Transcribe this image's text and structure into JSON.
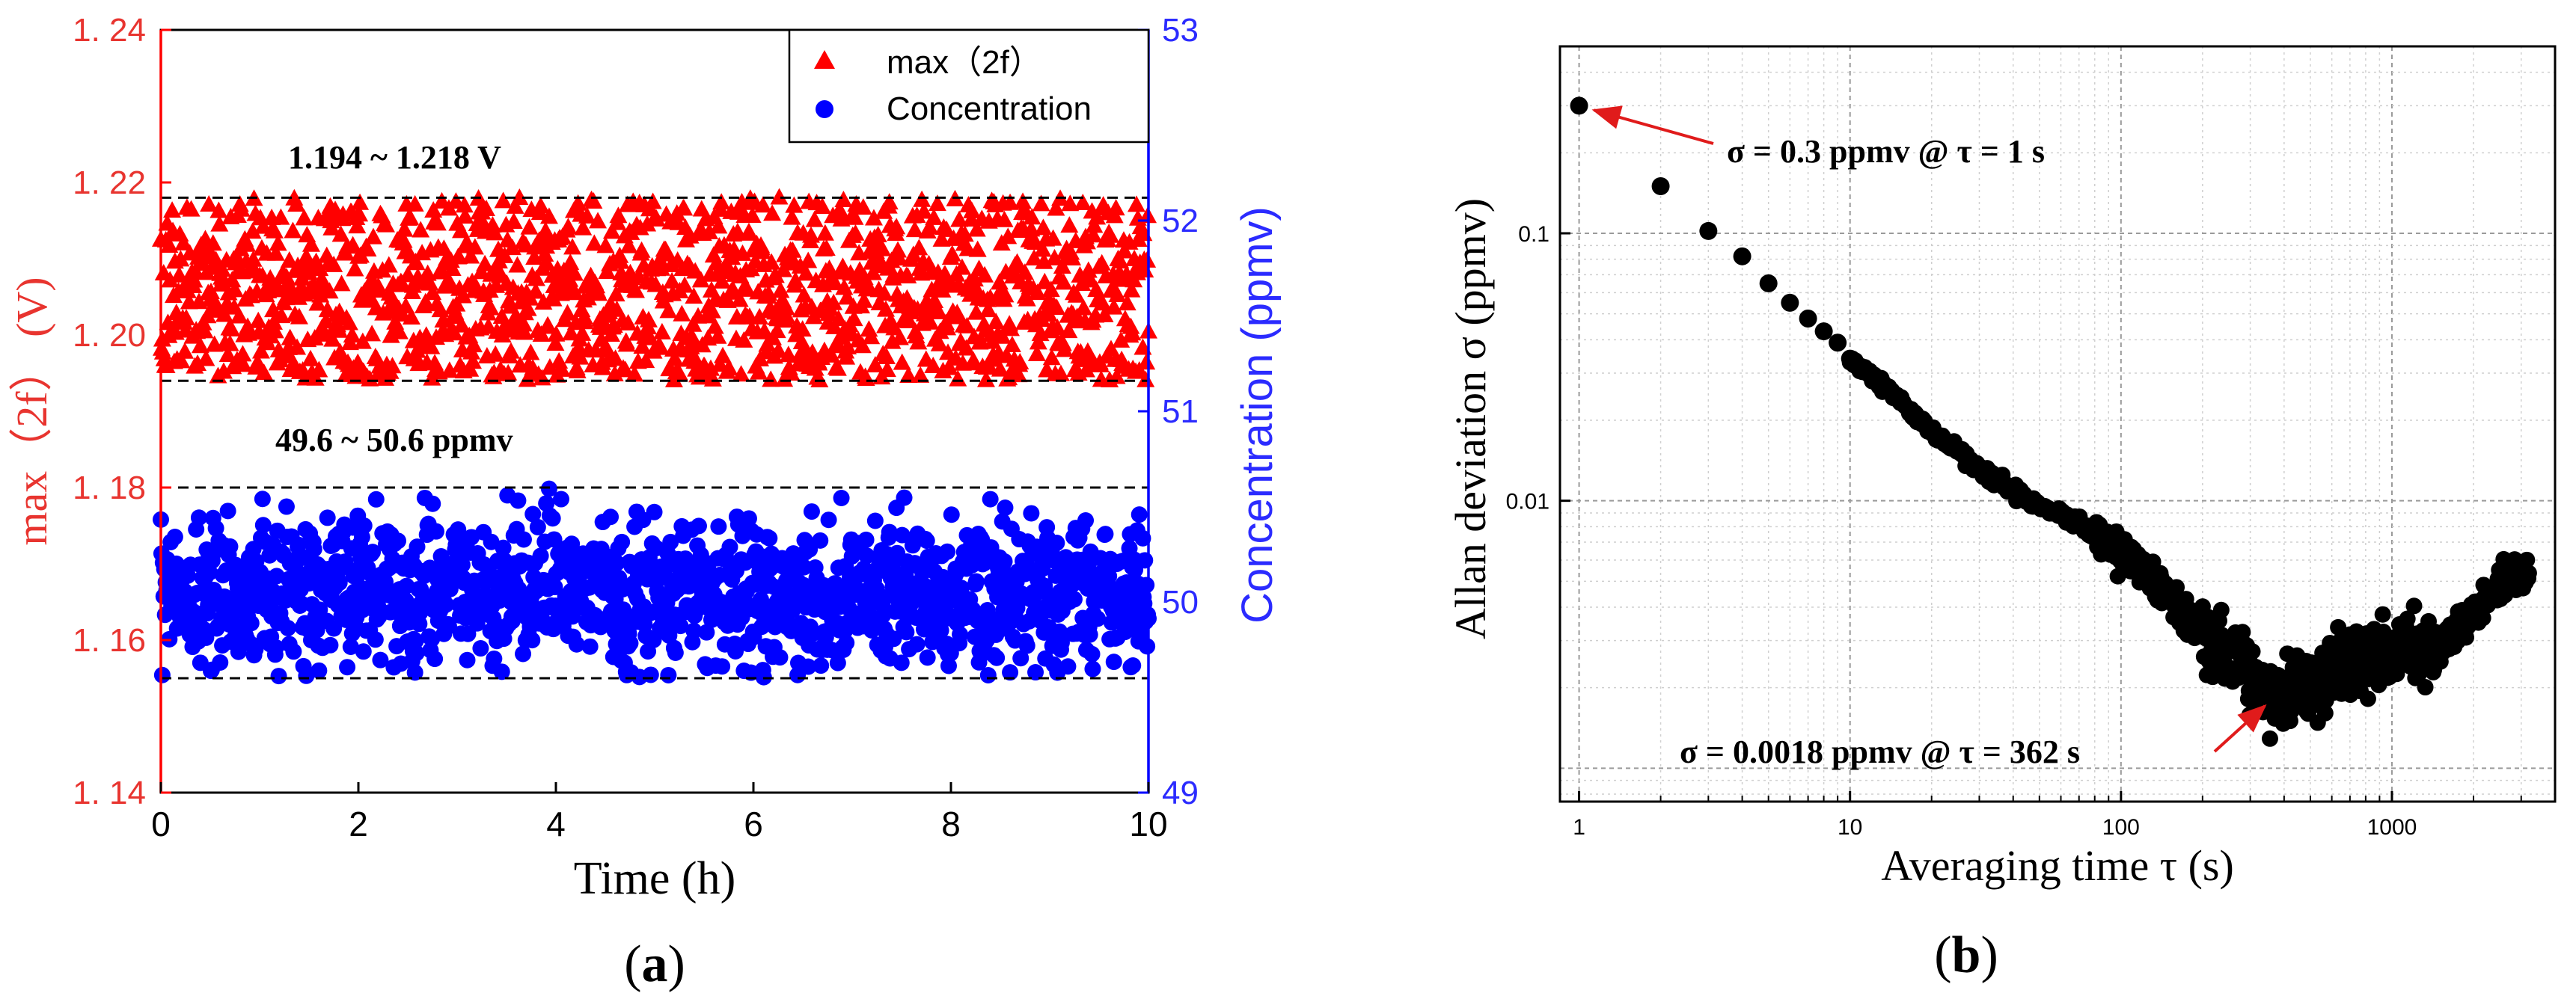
{
  "figure": {
    "panel_a_label_open": "(",
    "panel_a_label_letter": "a",
    "panel_a_label_close": ")",
    "panel_b_label_open": "(",
    "panel_b_label_letter": "b",
    "panel_b_label_close": ")"
  },
  "colors": {
    "red": "#ff0000",
    "blue": "#0000ff",
    "left_axis_text": "#e8342f",
    "right_axis_text": "#2b2bff",
    "black": "#000000"
  },
  "chart_data": [
    {
      "panel": "a",
      "type": "scatter",
      "xlabel": "Time (h)",
      "xlim": [
        0,
        10
      ],
      "xticks": [
        "0",
        "2",
        "4",
        "6",
        "8",
        "10"
      ],
      "ylabel_left": "max（2f） (V)",
      "ylim_left": [
        1.14,
        1.24
      ],
      "yticks_left": [
        "1. 14",
        "1. 16",
        "1. 18",
        "1. 20",
        "1. 22",
        "1. 24"
      ],
      "ylabel_right": "Concentration (ppmv)",
      "ylim_right": [
        49,
        53
      ],
      "yticks_right": [
        "49",
        "50",
        "51",
        "52",
        "53"
      ],
      "legend": {
        "position": "top-right",
        "entries": [
          {
            "label": "max（2f）",
            "marker": "triangle",
            "color": "#ff0000"
          },
          {
            "label": "Concentration",
            "marker": "circle",
            "color": "#0000ff"
          }
        ]
      },
      "series": [
        {
          "name": "max（2f）",
          "axis": "left",
          "marker": "triangle",
          "color": "#ff0000",
          "band": [
            1.194,
            1.218
          ],
          "center": 1.2055,
          "core_spread": 0.0075,
          "points": 1400
        },
        {
          "name": "Concentration",
          "axis": "right",
          "marker": "circle",
          "color": "#0000ff",
          "band": [
            49.6,
            50.6
          ],
          "center": 50.05,
          "core_spread": 0.19,
          "points": 1400
        }
      ],
      "reference_lines": [
        {
          "axis": "left",
          "value": 1.218
        },
        {
          "axis": "left",
          "value": 1.194
        },
        {
          "axis": "right",
          "value": 50.6
        },
        {
          "axis": "right",
          "value": 49.6
        }
      ],
      "annotations": [
        {
          "text": "1.194 ~ 1.218 V",
          "x": 1.3,
          "y_left": 1.2232
        },
        {
          "text": "49.6 ~ 50.6 ppmv",
          "x": 1.3,
          "y_left": 1.1835
        }
      ],
      "grid": false
    },
    {
      "panel": "b",
      "type": "scatter",
      "xlabel": "Averaging time  τ (s)",
      "xscale": "log",
      "xlim": [
        0.85,
        4000
      ],
      "xticks": [
        "1",
        "10",
        "100",
        "1000"
      ],
      "ylabel": "Allan deviation σ (ppmv)",
      "yscale": "log",
      "ylim": [
        0.00075,
        0.5
      ],
      "yticks": [
        "0.01",
        "0.1"
      ],
      "grid": true,
      "series": [
        {
          "name": "",
          "color": "#000000",
          "marker": "circle",
          "x": [
            1,
            2,
            3,
            4,
            5,
            6,
            7,
            8,
            9,
            10,
            11,
            12,
            13,
            15,
            17,
            19,
            22,
            25,
            28,
            32,
            36,
            40,
            45,
            50,
            56,
            63,
            70,
            80,
            90,
            100,
            112,
            125,
            140,
            160,
            180,
            200,
            225,
            250,
            280,
            320,
            362,
            400,
            450,
            500,
            560,
            630,
            700,
            800,
            900,
            1000,
            1120,
            1250,
            1400,
            1600,
            1800,
            2000,
            2250,
            2500,
            2800,
            3200
          ],
          "y": [
            0.3,
            0.15,
            0.102,
            0.082,
            0.065,
            0.055,
            0.048,
            0.043,
            0.039,
            0.034,
            0.031,
            0.029,
            0.027,
            0.024,
            0.021,
            0.019,
            0.0168,
            0.0152,
            0.0138,
            0.0126,
            0.0117,
            0.0108,
            0.0101,
            0.0096,
            0.0091,
            0.0087,
            0.0083,
            0.0076,
            0.007,
            0.0064,
            0.0058,
            0.0052,
            0.0046,
            0.0041,
            0.0036,
            0.0032,
            0.0029,
            0.0026,
            0.0023,
            0.002,
            0.0018,
            0.0019,
            0.002,
            0.0021,
            0.0022,
            0.0024,
            0.0025,
            0.0025,
            0.0026,
            0.0027,
            0.0028,
            0.0027,
            0.0028,
            0.0031,
            0.0035,
            0.0038,
            0.0043,
            0.0048,
            0.0053,
            0.0055
          ]
        }
      ],
      "annotations": [
        {
          "text": "σ = 0.3 ppmv @ τ = 1 s",
          "target_x": 1,
          "target_y": 0.3
        },
        {
          "text": "σ = 0.0018 ppmv @ τ = 362 s",
          "target_x": 362,
          "target_y": 0.0018
        }
      ]
    }
  ]
}
